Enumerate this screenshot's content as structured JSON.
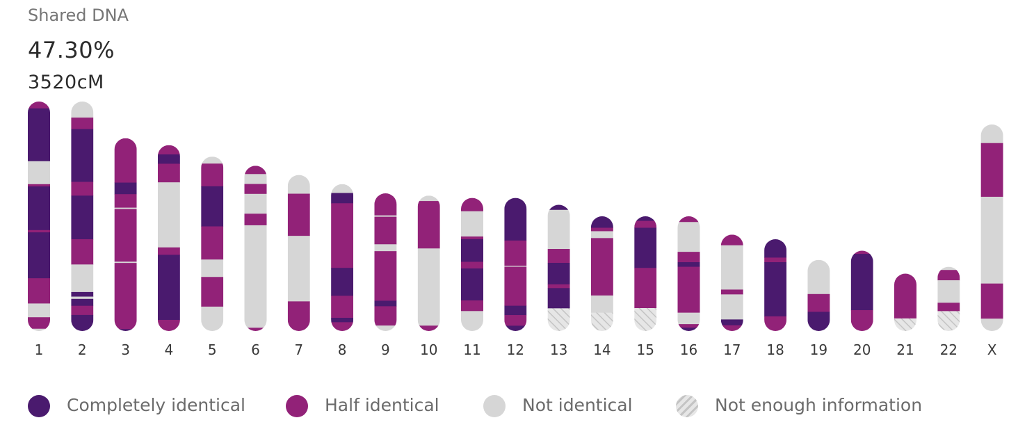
{
  "header": {
    "label": "Shared DNA",
    "percent": "47.30%",
    "cm": "3520cM"
  },
  "colors": {
    "full": "#4a1a6e",
    "half": "#922278",
    "none": "#d6d6d6",
    "insufficient": "#e6e6e6",
    "hatch": "#c4c4c4"
  },
  "legend": [
    {
      "key": "full",
      "label": "Completely identical"
    },
    {
      "key": "half",
      "label": "Half identical"
    },
    {
      "key": "none",
      "label": "Not identical"
    },
    {
      "key": "insufficient",
      "label": "Not enough information"
    }
  ],
  "chart_data": {
    "type": "chromosome-map",
    "title": "",
    "xlabel": "",
    "ylabel": "",
    "note": "each chromosome has a relative length (chromosome 1 = 100) and segments [start, end, state] in percent of its own length, from the top end",
    "chromosomes": [
      {
        "label": "1",
        "length": 100,
        "segments": [
          [
            0,
            3,
            "half"
          ],
          [
            3,
            26,
            "full"
          ],
          [
            26,
            36,
            "none"
          ],
          [
            36,
            37,
            "half"
          ],
          [
            37,
            56,
            "full"
          ],
          [
            56,
            57,
            "half"
          ],
          [
            57,
            77,
            "full"
          ],
          [
            77,
            88,
            "half"
          ],
          [
            88,
            94,
            "none"
          ],
          [
            94,
            99,
            "half"
          ],
          [
            99,
            100,
            "none"
          ]
        ]
      },
      {
        "label": "2",
        "length": 100,
        "segments": [
          [
            0,
            7,
            "none"
          ],
          [
            7,
            12,
            "half"
          ],
          [
            12,
            35,
            "full"
          ],
          [
            35,
            41,
            "half"
          ],
          [
            41,
            60,
            "full"
          ],
          [
            60,
            71,
            "half"
          ],
          [
            71,
            83,
            "none"
          ],
          [
            83,
            85,
            "full"
          ],
          [
            85,
            86,
            "none"
          ],
          [
            86,
            89,
            "full"
          ],
          [
            89,
            93,
            "half"
          ],
          [
            93,
            100,
            "full"
          ]
        ]
      },
      {
        "label": "3",
        "length": 84,
        "segments": [
          [
            0,
            23,
            "half"
          ],
          [
            23,
            29,
            "full"
          ],
          [
            29,
            36,
            "half"
          ],
          [
            36,
            36.7,
            "none"
          ],
          [
            36.7,
            64,
            "half"
          ],
          [
            64,
            64.7,
            "none"
          ],
          [
            64.7,
            99,
            "half"
          ],
          [
            99,
            100,
            "full"
          ]
        ]
      },
      {
        "label": "4",
        "length": 81,
        "segments": [
          [
            0,
            5,
            "half"
          ],
          [
            5,
            10,
            "full"
          ],
          [
            10,
            20,
            "half"
          ],
          [
            20,
            55,
            "none"
          ],
          [
            55,
            59,
            "half"
          ],
          [
            59,
            94,
            "full"
          ],
          [
            94,
            100,
            "half"
          ]
        ]
      },
      {
        "label": "5",
        "length": 76,
        "segments": [
          [
            0,
            4,
            "none"
          ],
          [
            4,
            17,
            "half"
          ],
          [
            17,
            40,
            "full"
          ],
          [
            40,
            59,
            "half"
          ],
          [
            59,
            69,
            "none"
          ],
          [
            69,
            86,
            "half"
          ],
          [
            86,
            100,
            "none"
          ]
        ]
      },
      {
        "label": "6",
        "length": 72,
        "segments": [
          [
            0,
            5,
            "half"
          ],
          [
            5,
            11,
            "none"
          ],
          [
            11,
            17,
            "half"
          ],
          [
            17,
            29,
            "none"
          ],
          [
            29,
            36,
            "half"
          ],
          [
            36,
            98,
            "none"
          ],
          [
            98,
            100,
            "half"
          ]
        ]
      },
      {
        "label": "7",
        "length": 68,
        "segments": [
          [
            0,
            12,
            "none"
          ],
          [
            12,
            39,
            "half"
          ],
          [
            39,
            81,
            "none"
          ],
          [
            81,
            100,
            "half"
          ]
        ]
      },
      {
        "label": "8",
        "length": 64,
        "segments": [
          [
            0,
            6,
            "none"
          ],
          [
            6,
            13,
            "full"
          ],
          [
            13,
            57,
            "half"
          ],
          [
            57,
            76,
            "full"
          ],
          [
            76,
            91,
            "half"
          ],
          [
            91,
            94,
            "full"
          ],
          [
            94,
            100,
            "half"
          ]
        ]
      },
      {
        "label": "9",
        "length": 60,
        "segments": [
          [
            0,
            16,
            "half"
          ],
          [
            16,
            17,
            "none"
          ],
          [
            17,
            37,
            "half"
          ],
          [
            37,
            42,
            "none"
          ],
          [
            42,
            78,
            "half"
          ],
          [
            78,
            82,
            "full"
          ],
          [
            82,
            96,
            "half"
          ],
          [
            96,
            100,
            "none"
          ]
        ]
      },
      {
        "label": "10",
        "length": 59,
        "segments": [
          [
            0,
            4,
            "none"
          ],
          [
            4,
            39,
            "half"
          ],
          [
            39,
            96,
            "none"
          ],
          [
            96,
            100,
            "half"
          ]
        ]
      },
      {
        "label": "11",
        "length": 58,
        "segments": [
          [
            0,
            10,
            "half"
          ],
          [
            10,
            29,
            "none"
          ],
          [
            29,
            31,
            "half"
          ],
          [
            31,
            48,
            "full"
          ],
          [
            48,
            53,
            "half"
          ],
          [
            53,
            77,
            "full"
          ],
          [
            77,
            85,
            "half"
          ],
          [
            85,
            100,
            "none"
          ]
        ]
      },
      {
        "label": "12",
        "length": 58,
        "segments": [
          [
            0,
            32,
            "full"
          ],
          [
            32,
            51,
            "half"
          ],
          [
            51,
            51.7,
            "none"
          ],
          [
            51.7,
            81,
            "half"
          ],
          [
            81,
            88,
            "full"
          ],
          [
            88,
            96,
            "half"
          ],
          [
            96,
            100,
            "full"
          ]
        ]
      },
      {
        "label": "13",
        "length": 55,
        "segments": [
          [
            0,
            4,
            "full"
          ],
          [
            4,
            35,
            "none"
          ],
          [
            35,
            46,
            "half"
          ],
          [
            46,
            63,
            "full"
          ],
          [
            63,
            66,
            "half"
          ],
          [
            66,
            82,
            "full"
          ],
          [
            82,
            100,
            "insufficient"
          ]
        ]
      },
      {
        "label": "14",
        "length": 50,
        "segments": [
          [
            0,
            10,
            "full"
          ],
          [
            10,
            13,
            "half"
          ],
          [
            13,
            19,
            "none"
          ],
          [
            19,
            69,
            "half"
          ],
          [
            69,
            84,
            "none"
          ],
          [
            84,
            100,
            "insufficient"
          ]
        ]
      },
      {
        "label": "15",
        "length": 50,
        "segments": [
          [
            0,
            4,
            "full"
          ],
          [
            4,
            10,
            "half"
          ],
          [
            10,
            45,
            "full"
          ],
          [
            45,
            80,
            "half"
          ],
          [
            80,
            100,
            "insufficient"
          ]
        ]
      },
      {
        "label": "16",
        "length": 50,
        "segments": [
          [
            0,
            5,
            "half"
          ],
          [
            5,
            31,
            "none"
          ],
          [
            31,
            40,
            "half"
          ],
          [
            40,
            44,
            "full"
          ],
          [
            44,
            84,
            "half"
          ],
          [
            84,
            94,
            "none"
          ],
          [
            94,
            97,
            "half"
          ],
          [
            97,
            100,
            "full"
          ]
        ]
      },
      {
        "label": "17",
        "length": 42,
        "segments": [
          [
            0,
            11,
            "half"
          ],
          [
            11,
            57,
            "none"
          ],
          [
            57,
            62,
            "half"
          ],
          [
            62,
            88,
            "none"
          ],
          [
            88,
            94,
            "full"
          ],
          [
            94,
            100,
            "half"
          ]
        ]
      },
      {
        "label": "18",
        "length": 40,
        "segments": [
          [
            0,
            20,
            "full"
          ],
          [
            20,
            25,
            "half"
          ],
          [
            25,
            84,
            "full"
          ],
          [
            84,
            100,
            "half"
          ]
        ]
      },
      {
        "label": "19",
        "length": 31,
        "segments": [
          [
            0,
            48,
            "none"
          ],
          [
            48,
            73,
            "half"
          ],
          [
            73,
            100,
            "full"
          ]
        ]
      },
      {
        "label": "20",
        "length": 35,
        "segments": [
          [
            0,
            4,
            "half"
          ],
          [
            4,
            74,
            "full"
          ],
          [
            74,
            100,
            "half"
          ]
        ]
      },
      {
        "label": "21",
        "length": 25,
        "segments": [
          [
            0,
            78,
            "half"
          ],
          [
            78,
            100,
            "insufficient"
          ]
        ]
      },
      {
        "label": "22",
        "length": 28,
        "segments": [
          [
            0,
            5,
            "none"
          ],
          [
            5,
            21,
            "half"
          ],
          [
            21,
            56,
            "none"
          ],
          [
            56,
            69,
            "half"
          ],
          [
            69,
            100,
            "insufficient"
          ]
        ]
      },
      {
        "label": "X",
        "length": 90,
        "segments": [
          [
            0,
            9,
            "none"
          ],
          [
            9,
            35,
            "half"
          ],
          [
            35,
            77,
            "none"
          ],
          [
            77,
            94,
            "half"
          ],
          [
            94,
            100,
            "none"
          ]
        ]
      }
    ]
  }
}
